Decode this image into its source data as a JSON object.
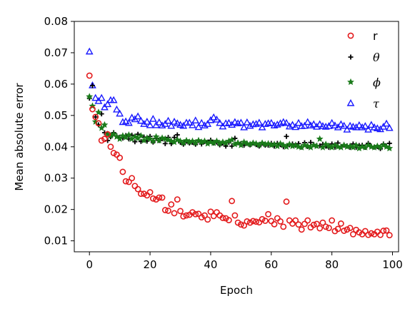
{
  "chart_data": {
    "type": "scatter",
    "title": "",
    "xlabel": "Epoch",
    "ylabel": "Mean absolute error",
    "xlim": [
      -5,
      102
    ],
    "ylim": [
      0.0065,
      0.08
    ],
    "xticks": [
      0,
      20,
      40,
      60,
      80,
      100
    ],
    "yticks": [
      0.01,
      0.02,
      0.03,
      0.04,
      0.05,
      0.06,
      0.07,
      0.08
    ],
    "xtick_labels": [
      "0",
      "20",
      "40",
      "60",
      "80",
      "100"
    ],
    "ytick_labels": [
      "0.01",
      "0.02",
      "0.03",
      "0.04",
      "0.05",
      "0.06",
      "0.07",
      "0.08"
    ],
    "grid": false,
    "legend": "top-right",
    "series": [
      {
        "name": "r",
        "color": "#e31a1c",
        "marker": "circle-open",
        "x": [
          0,
          1,
          2,
          3,
          4,
          5,
          6,
          7,
          8,
          9,
          10,
          11,
          12,
          13,
          14,
          15,
          16,
          17,
          18,
          19,
          20,
          21,
          22,
          23,
          24,
          25,
          26,
          27,
          28,
          29,
          30,
          31,
          32,
          33,
          34,
          35,
          36,
          37,
          38,
          39,
          40,
          41,
          42,
          43,
          44,
          45,
          46,
          47,
          48,
          49,
          50,
          51,
          52,
          53,
          54,
          55,
          56,
          57,
          58,
          59,
          60,
          61,
          62,
          63,
          64,
          65,
          66,
          67,
          68,
          69,
          70,
          71,
          72,
          73,
          74,
          75,
          76,
          77,
          78,
          79,
          80,
          81,
          82,
          83,
          84,
          85,
          86,
          87,
          88,
          89,
          90,
          91,
          92,
          93,
          94,
          95,
          96,
          97,
          98,
          99
        ],
        "y": [
          0.0627,
          0.052,
          0.0495,
          0.0475,
          0.042,
          0.0425,
          0.044,
          0.04,
          0.038,
          0.0375,
          0.0365,
          0.032,
          0.029,
          0.0288,
          0.03,
          0.0275,
          0.0265,
          0.025,
          0.025,
          0.0245,
          0.0255,
          0.0235,
          0.0232,
          0.0238,
          0.0238,
          0.0198,
          0.0196,
          0.0216,
          0.0188,
          0.0232,
          0.0195,
          0.0178,
          0.0181,
          0.0183,
          0.0191,
          0.0185,
          0.0186,
          0.0175,
          0.0181,
          0.0168,
          0.0193,
          0.0179,
          0.0191,
          0.0181,
          0.0173,
          0.0172,
          0.0166,
          0.0227,
          0.0181,
          0.0158,
          0.0152,
          0.0149,
          0.0162,
          0.0158,
          0.0163,
          0.0161,
          0.0159,
          0.0169,
          0.0164,
          0.0185,
          0.0163,
          0.0153,
          0.0172,
          0.0162,
          0.0145,
          0.0225,
          0.0165,
          0.0155,
          0.0165,
          0.0152,
          0.0136,
          0.0154,
          0.0165,
          0.0143,
          0.0151,
          0.0154,
          0.014,
          0.0158,
          0.0145,
          0.0141,
          0.0165,
          0.0131,
          0.0138,
          0.0155,
          0.0132,
          0.0136,
          0.0141,
          0.0121,
          0.0135,
          0.0127,
          0.0121,
          0.0131,
          0.0119,
          0.0124,
          0.0121,
          0.0129,
          0.0119,
          0.0132,
          0.0133,
          0.0118
        ]
      },
      {
        "name": "θ",
        "color": "#000000",
        "marker": "plus",
        "x": [
          0,
          1,
          2,
          3,
          4,
          5,
          6,
          7,
          8,
          9,
          10,
          11,
          12,
          13,
          14,
          15,
          16,
          17,
          18,
          19,
          20,
          21,
          22,
          23,
          24,
          25,
          26,
          27,
          28,
          29,
          30,
          31,
          32,
          33,
          34,
          35,
          36,
          37,
          38,
          39,
          40,
          41,
          42,
          43,
          44,
          45,
          46,
          47,
          48,
          49,
          50,
          51,
          52,
          53,
          54,
          55,
          56,
          57,
          58,
          59,
          60,
          61,
          62,
          63,
          64,
          65,
          66,
          67,
          68,
          69,
          70,
          71,
          72,
          73,
          74,
          75,
          76,
          77,
          78,
          79,
          80,
          81,
          82,
          83,
          84,
          85,
          86,
          87,
          88,
          89,
          90,
          91,
          92,
          93,
          94,
          95,
          96,
          97,
          98,
          99
        ],
        "y": [
          0.0555,
          0.0595,
          0.0495,
          0.047,
          0.0505,
          0.0445,
          0.042,
          0.0432,
          0.0445,
          0.0435,
          0.043,
          0.0428,
          0.0436,
          0.0425,
          0.0437,
          0.0416,
          0.044,
          0.0417,
          0.0431,
          0.0418,
          0.0433,
          0.0415,
          0.0427,
          0.042,
          0.0426,
          0.041,
          0.043,
          0.041,
          0.043,
          0.0438,
          0.0414,
          0.0408,
          0.0418,
          0.0412,
          0.0414,
          0.0408,
          0.042,
          0.0409,
          0.0417,
          0.0415,
          0.0421,
          0.0412,
          0.0415,
          0.0406,
          0.0412,
          0.0402,
          0.0414,
          0.0402,
          0.0427,
          0.0413,
          0.041,
          0.0405,
          0.0411,
          0.0406,
          0.0412,
          0.0407,
          0.0402,
          0.0412,
          0.0405,
          0.0405,
          0.0411,
          0.0402,
          0.0411,
          0.0407,
          0.04,
          0.0433,
          0.0406,
          0.0409,
          0.0405,
          0.041,
          0.0399,
          0.0413,
          0.0401,
          0.0414,
          0.0407,
          0.0404,
          0.0403,
          0.0408,
          0.0402,
          0.0398,
          0.0409,
          0.0399,
          0.0412,
          0.0401,
          0.0405,
          0.0403,
          0.0398,
          0.0409,
          0.0398,
          0.0404,
          0.0405,
          0.0398,
          0.0411,
          0.0402,
          0.0399,
          0.0401,
          0.0394,
          0.0409,
          0.0402,
          0.0411
        ]
      },
      {
        "name": "ϕ",
        "color": "#1a7a1a",
        "marker": "star",
        "x": [
          0,
          1,
          2,
          3,
          4,
          5,
          6,
          7,
          8,
          9,
          10,
          11,
          12,
          13,
          14,
          15,
          16,
          17,
          18,
          19,
          20,
          21,
          22,
          23,
          24,
          25,
          26,
          27,
          28,
          29,
          30,
          31,
          32,
          33,
          34,
          35,
          36,
          37,
          38,
          39,
          40,
          41,
          42,
          43,
          44,
          45,
          46,
          47,
          48,
          49,
          50,
          51,
          52,
          53,
          54,
          55,
          56,
          57,
          58,
          59,
          60,
          61,
          62,
          63,
          64,
          65,
          66,
          67,
          68,
          69,
          70,
          71,
          72,
          73,
          74,
          75,
          76,
          77,
          78,
          79,
          80,
          81,
          82,
          83,
          84,
          85,
          86,
          87,
          88,
          89,
          90,
          91,
          92,
          93,
          94,
          95,
          96,
          97,
          98,
          99
        ],
        "y": [
          0.056,
          0.053,
          0.048,
          0.051,
          0.046,
          0.047,
          0.044,
          0.0435,
          0.044,
          0.0432,
          0.0425,
          0.0435,
          0.043,
          0.0438,
          0.0425,
          0.0432,
          0.0427,
          0.0435,
          0.042,
          0.0428,
          0.0425,
          0.0418,
          0.0432,
          0.042,
          0.0428,
          0.0425,
          0.0422,
          0.0418,
          0.0415,
          0.0422,
          0.0418,
          0.0412,
          0.042,
          0.0415,
          0.0418,
          0.0412,
          0.042,
          0.0415,
          0.0418,
          0.041,
          0.0415,
          0.0412,
          0.0418,
          0.041,
          0.0415,
          0.0412,
          0.0418,
          0.0422,
          0.0408,
          0.0412,
          0.0405,
          0.0415,
          0.041,
          0.0408,
          0.0412,
          0.041,
          0.0405,
          0.0412,
          0.0408,
          0.041,
          0.0405,
          0.0408,
          0.0402,
          0.041,
          0.0405,
          0.04,
          0.0408,
          0.0402,
          0.0405,
          0.04,
          0.0398,
          0.0405,
          0.0402,
          0.0398,
          0.0405,
          0.0402,
          0.0425,
          0.0398,
          0.0408,
          0.0402,
          0.0398,
          0.0405,
          0.04,
          0.0398,
          0.0405,
          0.04,
          0.0402,
          0.0398,
          0.0405,
          0.0395,
          0.04,
          0.0398,
          0.0405,
          0.04,
          0.0398,
          0.0402,
          0.0398,
          0.0405,
          0.04,
          0.0395
        ]
      },
      {
        "name": "τ",
        "color": "#1a1aff",
        "marker": "triangle-open",
        "x": [
          0,
          1,
          2,
          3,
          4,
          5,
          6,
          7,
          8,
          9,
          10,
          11,
          12,
          13,
          14,
          15,
          16,
          17,
          18,
          19,
          20,
          21,
          22,
          23,
          24,
          25,
          26,
          27,
          28,
          29,
          30,
          31,
          32,
          33,
          34,
          35,
          36,
          37,
          38,
          39,
          40,
          41,
          42,
          43,
          44,
          45,
          46,
          47,
          48,
          49,
          50,
          51,
          52,
          53,
          54,
          55,
          56,
          57,
          58,
          59,
          60,
          61,
          62,
          63,
          64,
          65,
          66,
          67,
          68,
          69,
          70,
          71,
          72,
          73,
          74,
          75,
          76,
          77,
          78,
          79,
          80,
          81,
          82,
          83,
          84,
          85,
          86,
          87,
          88,
          89,
          90,
          91,
          92,
          93,
          94,
          95,
          96,
          97,
          98,
          99
        ],
        "y": [
          0.0703,
          0.0595,
          0.0555,
          0.0545,
          0.0555,
          0.0525,
          0.0535,
          0.0548,
          0.0548,
          0.0518,
          0.0505,
          0.0478,
          0.048,
          0.0475,
          0.0492,
          0.0487,
          0.0496,
          0.0482,
          0.0472,
          0.0479,
          0.0468,
          0.0488,
          0.0468,
          0.0477,
          0.0467,
          0.0472,
          0.0482,
          0.0466,
          0.0479,
          0.0474,
          0.0469,
          0.0466,
          0.0476,
          0.0476,
          0.0468,
          0.0483,
          0.0462,
          0.0475,
          0.0467,
          0.0472,
          0.0484,
          0.0493,
          0.0486,
          0.0475,
          0.0464,
          0.0474,
          0.0475,
          0.0469,
          0.0478,
          0.0474,
          0.0476,
          0.0461,
          0.0477,
          0.0466,
          0.0471,
          0.0472,
          0.0476,
          0.0461,
          0.0472,
          0.0474,
          0.0475,
          0.0467,
          0.047,
          0.0474,
          0.0478,
          0.0475,
          0.0464,
          0.0469,
          0.0462,
          0.0475,
          0.0465,
          0.0466,
          0.0478,
          0.0467,
          0.0471,
          0.0463,
          0.0471,
          0.0465,
          0.0463,
          0.0465,
          0.0475,
          0.0467,
          0.0461,
          0.0471,
          0.0466,
          0.0454,
          0.0466,
          0.0463,
          0.0461,
          0.0468,
          0.0461,
          0.0465,
          0.0454,
          0.0469,
          0.0461,
          0.0458,
          0.0455,
          0.0463,
          0.0473,
          0.0459
        ]
      }
    ]
  }
}
